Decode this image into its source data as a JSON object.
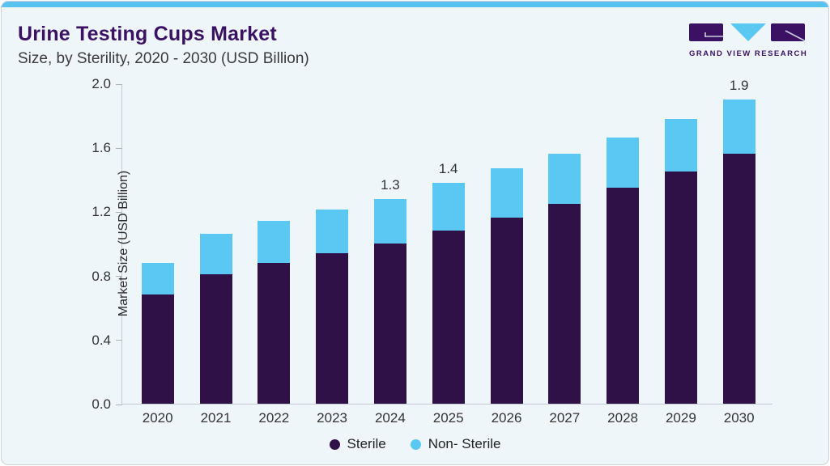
{
  "card": {
    "title": "Urine Testing Cups Market",
    "subtitle": "Size, by Sterility, 2020 - 2030 (USD Billion)"
  },
  "logo": {
    "text": "GRAND VIEW RESEARCH"
  },
  "colors": {
    "accent_strip": "#58c3ee",
    "sterile": "#2f1147",
    "non_sterile": "#5bc8f3",
    "title_purple": "#3a1163"
  },
  "chart_data": {
    "type": "bar",
    "stacked": true,
    "title": "Urine Testing Cups Market Size, by Sterility, 2020 - 2030 (USD Billion)",
    "categories": [
      "2020",
      "2021",
      "2022",
      "2023",
      "2024",
      "2025",
      "2026",
      "2027",
      "2028",
      "2029",
      "2030"
    ],
    "series": [
      {
        "name": "Sterile",
        "color": "#2f1147",
        "values": [
          0.68,
          0.81,
          0.88,
          0.94,
          1.0,
          1.08,
          1.16,
          1.25,
          1.35,
          1.45,
          1.56
        ]
      },
      {
        "name": "Non- Sterile",
        "color": "#5bc8f3",
        "values": [
          0.2,
          0.25,
          0.26,
          0.27,
          0.28,
          0.3,
          0.31,
          0.31,
          0.31,
          0.33,
          0.34
        ]
      }
    ],
    "totals": [
      0.88,
      1.06,
      1.14,
      1.21,
      1.28,
      1.38,
      1.47,
      1.56,
      1.66,
      1.78,
      1.9
    ],
    "bar_labels": {
      "2024": "1.3",
      "2025": "1.4",
      "2030": "1.9"
    },
    "ylabel": "Market Size (USD Billion)",
    "yticks": [
      "0.0",
      "0.4",
      "0.8",
      "1.2",
      "1.6",
      "2.0"
    ],
    "ylim": [
      0.0,
      2.0
    ],
    "grid": false,
    "legend_position": "bottom"
  }
}
